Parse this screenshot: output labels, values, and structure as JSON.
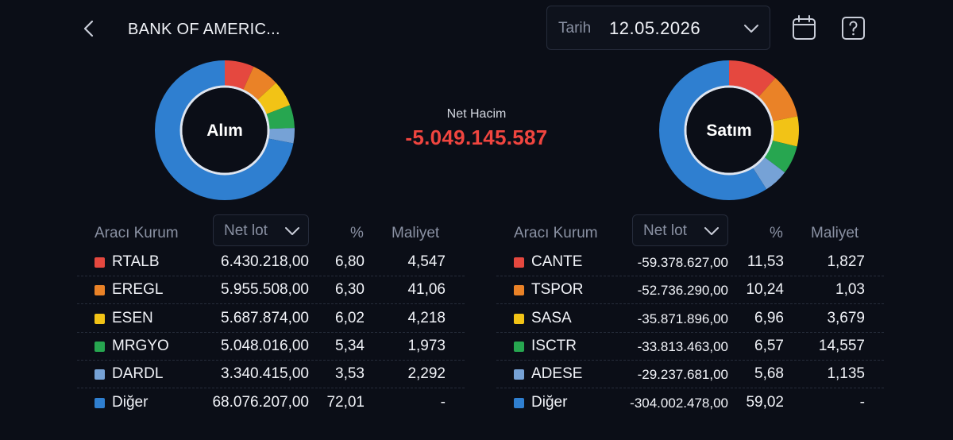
{
  "header": {
    "title": "BANK OF AMERIC...",
    "date_label": "Tarih",
    "date_value": "12.05.2026"
  },
  "summary": {
    "net_caption": "Net Hacim",
    "net_value": "-5.049.145.587"
  },
  "donuts": {
    "buy_label": "Alım",
    "sell_label": "Satım"
  },
  "colors": {
    "red": "#e5483f",
    "orange": "#ea8227",
    "yellow": "#f2c316",
    "green": "#27a650",
    "lightblue": "#76a2d6",
    "blue": "#2f7fd0",
    "negative": "#f0453f"
  },
  "buy_table": {
    "headers": {
      "broker": "Aracı Kurum",
      "sort": "Net lot",
      "pct": "%",
      "cost": "Maliyet"
    },
    "rows": [
      {
        "code": "RTALB",
        "lot": "6.430.218,00",
        "pct": "6,80",
        "cost": "4,547",
        "color": "#e5483f"
      },
      {
        "code": "EREGL",
        "lot": "5.955.508,00",
        "pct": "6,30",
        "cost": "41,06",
        "color": "#ea8227"
      },
      {
        "code": "ESEN",
        "lot": "5.687.874,00",
        "pct": "6,02",
        "cost": "4,218",
        "color": "#f2c316"
      },
      {
        "code": "MRGYO",
        "lot": "5.048.016,00",
        "pct": "5,34",
        "cost": "1,973",
        "color": "#27a650"
      },
      {
        "code": "DARDL",
        "lot": "3.340.415,00",
        "pct": "3,53",
        "cost": "2,292",
        "color": "#76a2d6"
      },
      {
        "code": "Diğer",
        "lot": "68.076.207,00",
        "pct": "72,01",
        "cost": "-",
        "color": "#2f7fd0"
      }
    ]
  },
  "sell_table": {
    "headers": {
      "broker": "Aracı Kurum",
      "sort": "Net lot",
      "pct": "%",
      "cost": "Maliyet"
    },
    "rows": [
      {
        "code": "CANTE",
        "lot": "-59.378.627,00",
        "pct": "11,53",
        "cost": "1,827",
        "color": "#e5483f"
      },
      {
        "code": "TSPOR",
        "lot": "-52.736.290,00",
        "pct": "10,24",
        "cost": "1,03",
        "color": "#ea8227"
      },
      {
        "code": "SASA",
        "lot": "-35.871.896,00",
        "pct": "6,96",
        "cost": "3,679",
        "color": "#f2c316"
      },
      {
        "code": "ISCTR",
        "lot": "-33.813.463,00",
        "pct": "6,57",
        "cost": "14,557",
        "color": "#27a650"
      },
      {
        "code": "ADESE",
        "lot": "-29.237.681,00",
        "pct": "5,68",
        "cost": "1,135",
        "color": "#76a2d6"
      },
      {
        "code": "Diğer",
        "lot": "-304.002.478,00",
        "pct": "59,02",
        "cost": "-",
        "color": "#2f7fd0"
      }
    ]
  },
  "icons": {
    "back": "chevron-left-icon",
    "date_dropdown": "chevron-down-icon",
    "calendar": "calendar-icon",
    "help": "question-mark-icon"
  }
}
